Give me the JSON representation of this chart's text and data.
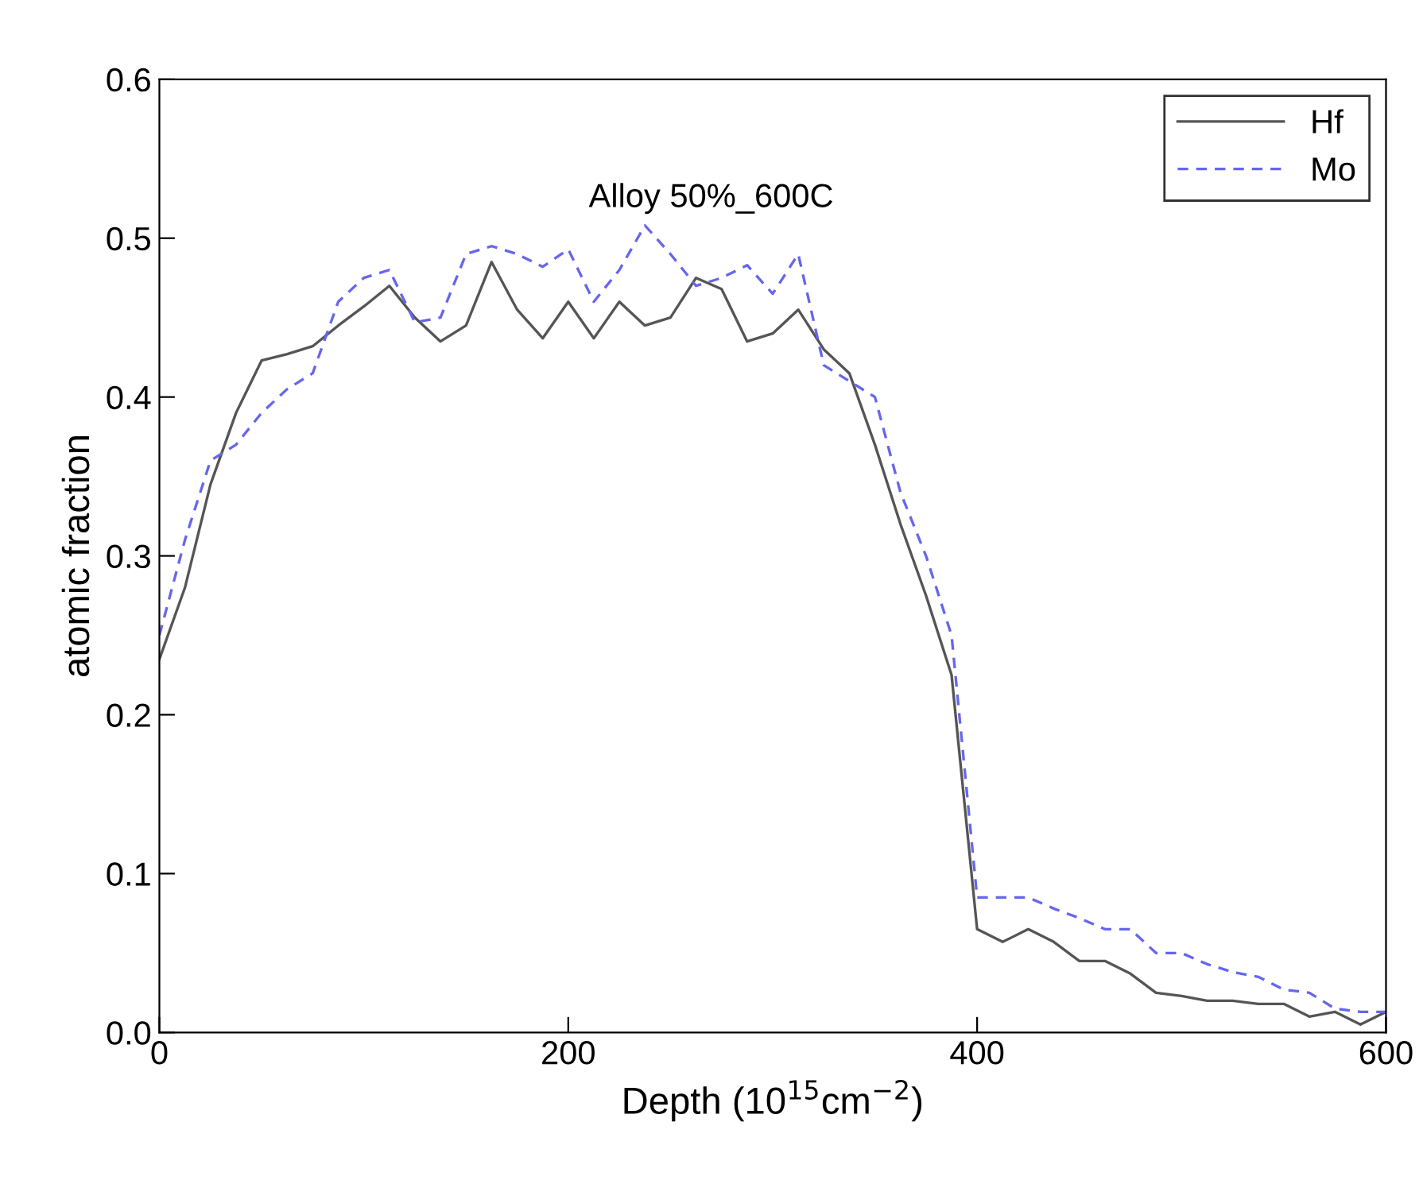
{
  "chart_data": {
    "type": "line",
    "xlabel": "Depth (10$^{15}$cm$^{−2}$)",
    "ylabel": "atomic fraction",
    "annotations": [
      "Alloy 50%_600C"
    ],
    "x": [
      0,
      12.5,
      25,
      37.5,
      50,
      62.5,
      75,
      87.5,
      100,
      112.5,
      125,
      137.5,
      150,
      162.5,
      175,
      187.5,
      200,
      212.5,
      225,
      237.5,
      250,
      262.5,
      275,
      287.5,
      300,
      312.5,
      325,
      337.5,
      350,
      362.5,
      375,
      387.5,
      400,
      412.5,
      425,
      437.5,
      450,
      462.5,
      475,
      487.5,
      500,
      512.5,
      525,
      537.5,
      550,
      562.5,
      575,
      587.5,
      600
    ],
    "series": [
      {
        "name": "Hf",
        "color": "#555555",
        "line_style": "solid",
        "values": [
          0.235,
          0.28,
          0.345,
          0.39,
          0.423,
          0.427,
          0.432,
          0.445,
          0.457,
          0.47,
          0.45,
          0.435,
          0.445,
          0.485,
          0.455,
          0.437,
          0.46,
          0.437,
          0.46,
          0.445,
          0.45,
          0.475,
          0.468,
          0.435,
          0.44,
          0.455,
          0.43,
          0.415,
          0.37,
          0.32,
          0.275,
          0.225,
          0.065,
          0.057,
          0.065,
          0.057,
          0.045,
          0.045,
          0.037,
          0.025,
          0.023,
          0.02,
          0.02,
          0.018,
          0.018,
          0.01,
          0.013,
          0.005,
          0.013
        ]
      },
      {
        "name": "Mo",
        "color": "#6666ee",
        "line_style": "dashed",
        "values": [
          0.25,
          0.31,
          0.36,
          0.37,
          0.39,
          0.405,
          0.415,
          0.46,
          0.475,
          0.48,
          0.447,
          0.45,
          0.49,
          0.495,
          0.49,
          0.482,
          0.493,
          0.46,
          0.48,
          0.508,
          0.49,
          0.47,
          0.475,
          0.483,
          0.465,
          0.49,
          0.42,
          0.41,
          0.4,
          0.34,
          0.3,
          0.25,
          0.085,
          0.085,
          0.085,
          0.078,
          0.072,
          0.065,
          0.065,
          0.05,
          0.05,
          0.043,
          0.038,
          0.035,
          0.027,
          0.025,
          0.015,
          0.013,
          0.013
        ]
      }
    ],
    "xlim": [
      0,
      600
    ],
    "xticks": [
      0,
      200,
      400,
      600
    ],
    "ylim": [
      0,
      0.6
    ],
    "yticks": [
      {
        "value": 0,
        "label": "0.0"
      },
      0.1,
      0.2,
      0.3,
      0.4,
      0.5,
      0.6
    ],
    "legend": "top right",
    "grid": false,
    "marker": "none"
  }
}
